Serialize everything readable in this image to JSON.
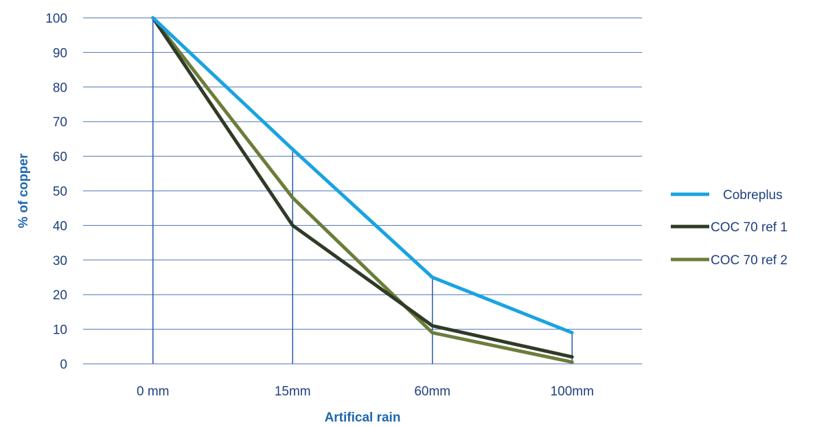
{
  "chart_data": {
    "type": "line",
    "title": "",
    "xlabel": "Artifical rain",
    "ylabel": "% of  copper",
    "categories": [
      "0 mm",
      "15mm",
      "60mm",
      "100mm"
    ],
    "ylim": [
      0,
      100
    ],
    "yticks": [
      0,
      10,
      20,
      30,
      40,
      50,
      60,
      70,
      80,
      90,
      100
    ],
    "grid": "horizontal",
    "legend": "right",
    "series": [
      {
        "name": "Cobreplus",
        "color": "#1aa3e0",
        "values": [
          100,
          62,
          25,
          9
        ]
      },
      {
        "name": "COC 70 ref 1",
        "color": "#2f3b27",
        "values": [
          100,
          40,
          11,
          2
        ]
      },
      {
        "name": "COC 70 ref 2",
        "color": "#6b7d3a",
        "values": [
          100,
          48,
          9,
          0.5
        ]
      }
    ]
  }
}
